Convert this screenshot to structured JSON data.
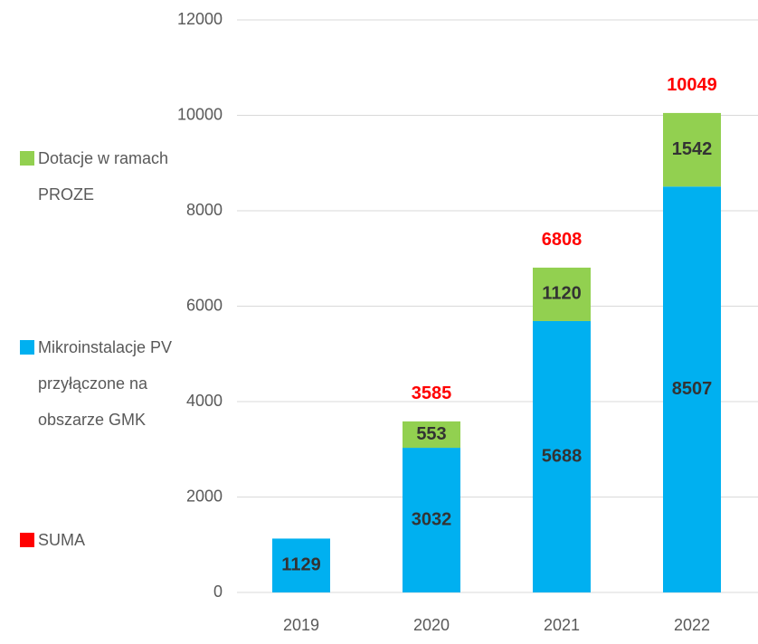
{
  "chart_data": {
    "type": "stacked_bar",
    "categories": [
      "2019",
      "2020",
      "2021",
      "2022"
    ],
    "series": [
      {
        "name": "Mikroinstalacje PV przyłączone na obszarze GMK",
        "color": "#00b0f0",
        "values": [
          1129,
          3032,
          5688,
          8507
        ]
      },
      {
        "name": "Dotacje w ramach PROZE",
        "color": "#92d050",
        "values": [
          null,
          553,
          1120,
          1542
        ]
      }
    ],
    "totals": {
      "name": "SUMA",
      "color": "#ff0000",
      "values": [
        null,
        3585,
        6808,
        10049
      ]
    },
    "ylim": [
      0,
      12000
    ],
    "yticks": [
      0,
      2000,
      4000,
      6000,
      8000,
      10000,
      12000
    ],
    "grid": true,
    "legend": "left"
  }
}
